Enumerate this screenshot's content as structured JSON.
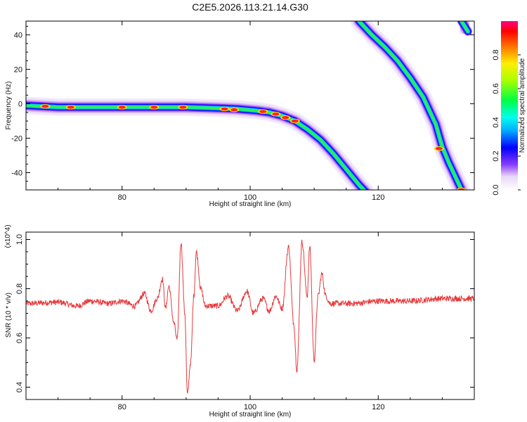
{
  "figure_title": "C2E5.2026.113.21.14.G30",
  "chart_data": [
    {
      "type": "heatmap",
      "title": "C2E5.2026.113.21.14.G30",
      "xlabel": "Height of straight line (km)",
      "ylabel": "Frequency (Hz)",
      "xlim": [
        65,
        135
      ],
      "ylim": [
        -50,
        48
      ],
      "x_ticks": [
        80,
        100,
        120
      ],
      "y_ticks": [
        40,
        20,
        0,
        -20,
        -40
      ],
      "colorbar": {
        "label": "Normalized spectral amplitude",
        "range": [
          0,
          1
        ],
        "ticks": [
          0.0,
          0.2,
          0.4,
          0.6,
          0.8
        ]
      },
      "ridges": [
        {
          "name": "main",
          "points": [
            [
              65,
              -1
            ],
            [
              70,
              -2
            ],
            [
              80,
              -2
            ],
            [
              90,
              -2
            ],
            [
              95,
              -2.5
            ],
            [
              98,
              -3
            ],
            [
              101,
              -4
            ],
            [
              103,
              -5
            ],
            [
              105,
              -7
            ],
            [
              107,
              -10
            ],
            [
              109,
              -15
            ],
            [
              111,
              -21
            ],
            [
              113,
              -29
            ],
            [
              115,
              -38
            ],
            [
              117,
              -47
            ],
            [
              118,
              -51
            ]
          ],
          "peaks": [
            [
              68,
              -1.5
            ],
            [
              72,
              -2
            ],
            [
              80,
              -2
            ],
            [
              85,
              -2
            ],
            [
              89.5,
              -2
            ],
            [
              96,
              -3
            ],
            [
              97.5,
              -3.5
            ],
            [
              102,
              -4.5
            ],
            [
              104,
              -6
            ],
            [
              105.5,
              -8
            ],
            [
              107,
              -10
            ]
          ]
        },
        {
          "name": "second",
          "points": [
            [
              117,
              48
            ],
            [
              119,
              40
            ],
            [
              121,
              33
            ],
            [
              123,
              25
            ],
            [
              125,
              15
            ],
            [
              127,
              4
            ],
            [
              129,
              -12
            ],
            [
              130,
              -25
            ],
            [
              131,
              -34
            ],
            [
              132,
              -42
            ],
            [
              133,
              -50
            ]
          ],
          "peaks": [
            [
              129.5,
              -26
            ],
            [
              133,
              -50
            ]
          ]
        },
        {
          "name": "third",
          "points": [
            [
              133,
              48
            ],
            [
              134,
              42
            ]
          ],
          "peaks": []
        }
      ]
    },
    {
      "type": "line",
      "xlabel": "Height of straight line (km)",
      "ylabel": "SNR (10 * v/v)",
      "multiplier": "(x10^4)",
      "xlim": [
        65,
        135
      ],
      "ylim": [
        0.35,
        1.03
      ],
      "x_ticks": [
        80,
        100,
        120
      ],
      "y_ticks": [
        0.4,
        0.6,
        0.8,
        1.0
      ],
      "color": "#e8393c",
      "baseline": 0.74,
      "noise_amplitude": 0.012,
      "keypoints": [
        [
          65,
          0.74
        ],
        [
          70,
          0.745
        ],
        [
          73,
          0.73
        ],
        [
          75,
          0.75
        ],
        [
          78,
          0.74
        ],
        [
          80,
          0.75
        ],
        [
          82,
          0.73
        ],
        [
          83.5,
          0.78
        ],
        [
          84.5,
          0.71
        ],
        [
          85.5,
          0.76
        ],
        [
          86.3,
          0.84
        ],
        [
          86.8,
          0.72
        ],
        [
          87.3,
          0.81
        ],
        [
          88.1,
          0.66
        ],
        [
          88.6,
          0.59
        ],
        [
          89.2,
          0.99
        ],
        [
          89.8,
          0.7
        ],
        [
          90.2,
          0.37
        ],
        [
          90.7,
          0.5
        ],
        [
          91.2,
          0.77
        ],
        [
          91.6,
          0.95
        ],
        [
          92.3,
          0.8
        ],
        [
          93,
          0.73
        ],
        [
          95,
          0.73
        ],
        [
          96.5,
          0.77
        ],
        [
          98,
          0.71
        ],
        [
          99.5,
          0.79
        ],
        [
          100.5,
          0.7
        ],
        [
          102,
          0.76
        ],
        [
          103,
          0.71
        ],
        [
          104,
          0.77
        ],
        [
          105,
          0.72
        ],
        [
          106,
          0.97
        ],
        [
          106.8,
          0.66
        ],
        [
          107.3,
          0.47
        ],
        [
          108.1,
          0.99
        ],
        [
          108.9,
          0.77
        ],
        [
          109.3,
          0.97
        ],
        [
          110,
          0.51
        ],
        [
          110.6,
          0.77
        ],
        [
          111.2,
          0.86
        ],
        [
          111.8,
          0.77
        ],
        [
          112.5,
          0.74
        ],
        [
          116,
          0.74
        ],
        [
          120,
          0.75
        ],
        [
          125,
          0.75
        ],
        [
          130,
          0.76
        ],
        [
          135,
          0.76
        ]
      ]
    }
  ]
}
